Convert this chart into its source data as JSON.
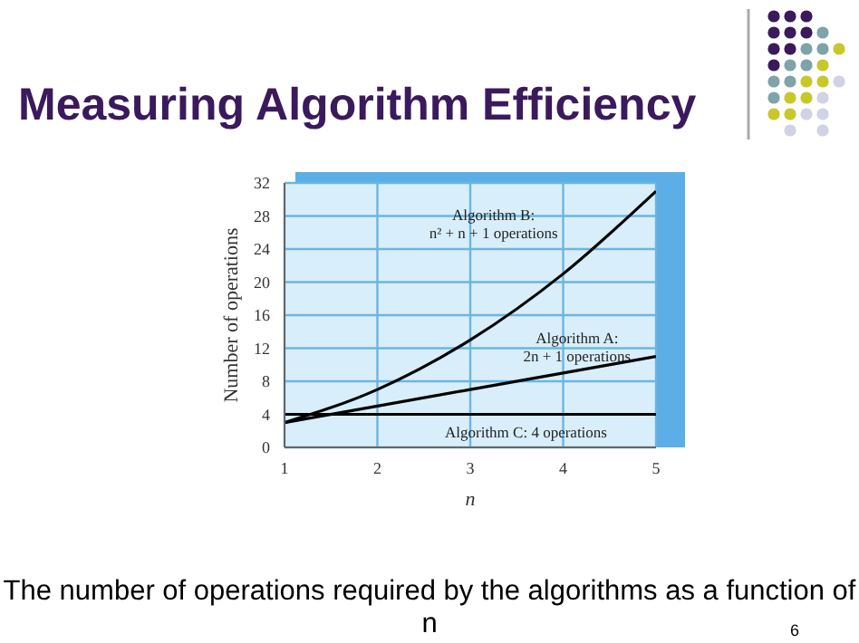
{
  "chart_data": {
    "type": "line",
    "title": "Measuring Algorithm Efficiency",
    "xlabel": "n",
    "ylabel": "Number of operations",
    "x": [
      1,
      2,
      3,
      4,
      5
    ],
    "series": [
      {
        "name": "Algorithm B: n² + n + 1 operations",
        "color": "#000000",
        "values": [
          3,
          7,
          13,
          21,
          31
        ]
      },
      {
        "name": "Algorithm A: 2n + 1 operations",
        "color": "#000000",
        "values": [
          3,
          5,
          7,
          9,
          11
        ]
      },
      {
        "name": "Algorithm C: 4 operations",
        "color": "#000000",
        "values": [
          4,
          4,
          4,
          4,
          4
        ]
      }
    ],
    "xlim": [
      1,
      5
    ],
    "xticks": [
      1,
      2,
      3,
      4,
      5
    ],
    "ylim": [
      0,
      32
    ],
    "yticks": [
      0,
      4,
      8,
      12,
      16,
      20,
      24,
      28,
      32
    ],
    "grid": true,
    "legend": false,
    "marker": "none",
    "line_style": "solid",
    "annotations": [
      "The number of operations required by the algorithms as a function of n",
      "6"
    ]
  }
}
